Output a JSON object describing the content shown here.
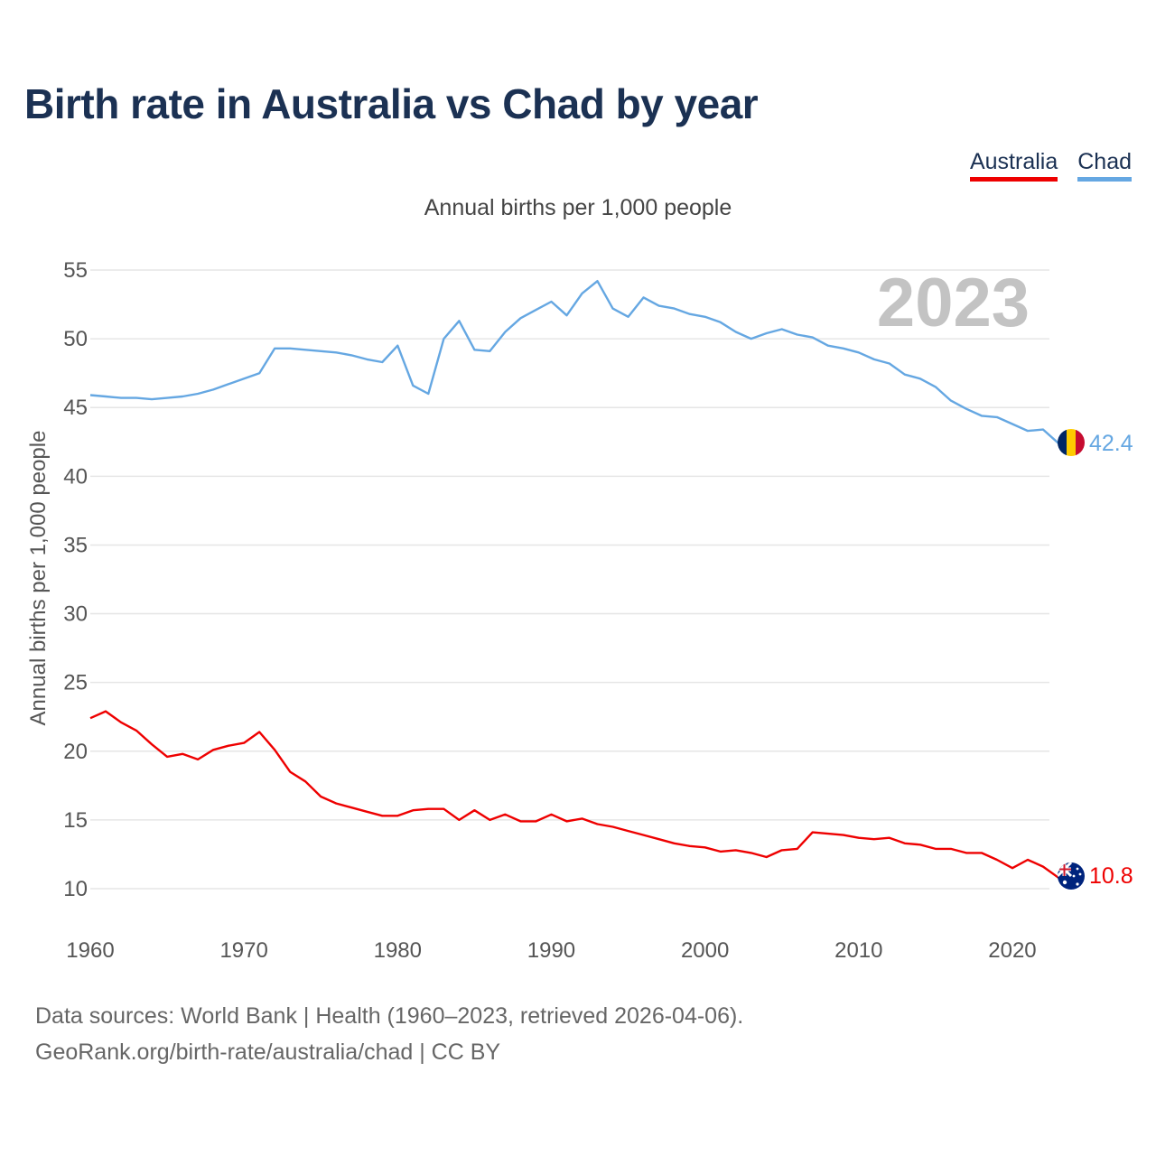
{
  "title": "Birth rate in Australia vs Chad by year",
  "subtitle": "Annual births per 1,000 people",
  "legend": [
    {
      "label": "Australia",
      "color": "#ee0000"
    },
    {
      "label": "Chad",
      "color": "#65a7e2"
    }
  ],
  "current_year": "2023",
  "footer": {
    "line1": "Data sources: World Bank | Health (1960–2023, retrieved 2026-04-06).",
    "line2": "GeoRank.org/birth-rate/australia/chad | CC BY"
  },
  "chart_data": {
    "type": "line",
    "title": "Birth rate in Australia vs Chad by year",
    "ylabel": "Annual births per 1,000 people",
    "xlabel": "",
    "xlim": [
      1960,
      2023
    ],
    "ylim": [
      10,
      55
    ],
    "x_ticks": [
      1960,
      1970,
      1980,
      1990,
      2000,
      2010,
      2020
    ],
    "y_ticks": [
      10,
      15,
      20,
      25,
      30,
      35,
      40,
      45,
      50,
      55
    ],
    "grid": true,
    "legend_position": "top-right",
    "x": [
      1960,
      1961,
      1962,
      1963,
      1964,
      1965,
      1966,
      1967,
      1968,
      1969,
      1970,
      1971,
      1972,
      1973,
      1974,
      1975,
      1976,
      1977,
      1978,
      1979,
      1980,
      1981,
      1982,
      1983,
      1984,
      1985,
      1986,
      1987,
      1988,
      1989,
      1990,
      1991,
      1992,
      1993,
      1994,
      1995,
      1996,
      1997,
      1998,
      1999,
      2000,
      2001,
      2002,
      2003,
      2004,
      2005,
      2006,
      2007,
      2008,
      2009,
      2010,
      2011,
      2012,
      2013,
      2014,
      2015,
      2016,
      2017,
      2018,
      2019,
      2020,
      2021,
      2022,
      2023
    ],
    "series": [
      {
        "name": "Australia",
        "color": "#ee0000",
        "end_label": "10.8",
        "values": [
          22.4,
          22.9,
          22.1,
          21.5,
          20.5,
          19.6,
          19.8,
          19.4,
          20.1,
          20.4,
          20.6,
          21.4,
          20.1,
          18.5,
          17.8,
          16.7,
          16.2,
          15.9,
          15.6,
          15.3,
          15.3,
          15.7,
          15.8,
          15.8,
          15.0,
          15.7,
          15.0,
          15.4,
          14.9,
          14.9,
          15.4,
          14.9,
          15.1,
          14.7,
          14.5,
          14.2,
          13.9,
          13.6,
          13.3,
          13.1,
          13.0,
          12.7,
          12.8,
          12.6,
          12.3,
          12.8,
          12.9,
          14.1,
          14.0,
          13.9,
          13.7,
          13.6,
          13.7,
          13.3,
          13.2,
          12.9,
          12.9,
          12.6,
          12.6,
          12.1,
          11.5,
          12.1,
          11.6,
          10.8
        ]
      },
      {
        "name": "Chad",
        "color": "#65a7e2",
        "end_label": "42.4",
        "values": [
          45.9,
          45.8,
          45.7,
          45.7,
          45.6,
          45.7,
          45.8,
          46.0,
          46.3,
          46.7,
          47.1,
          47.5,
          49.3,
          49.3,
          49.2,
          49.1,
          49.0,
          48.8,
          48.5,
          48.3,
          49.5,
          46.6,
          46.0,
          50.0,
          51.3,
          49.2,
          49.1,
          50.5,
          51.5,
          52.1,
          52.7,
          51.7,
          53.3,
          54.2,
          52.2,
          51.6,
          53.0,
          52.4,
          52.2,
          51.8,
          51.6,
          51.2,
          50.5,
          50.0,
          50.4,
          50.7,
          50.3,
          50.1,
          49.5,
          49.3,
          49.0,
          48.5,
          48.2,
          47.4,
          47.1,
          46.5,
          45.5,
          44.9,
          44.4,
          44.3,
          43.8,
          43.3,
          43.4,
          42.4
        ]
      }
    ]
  }
}
